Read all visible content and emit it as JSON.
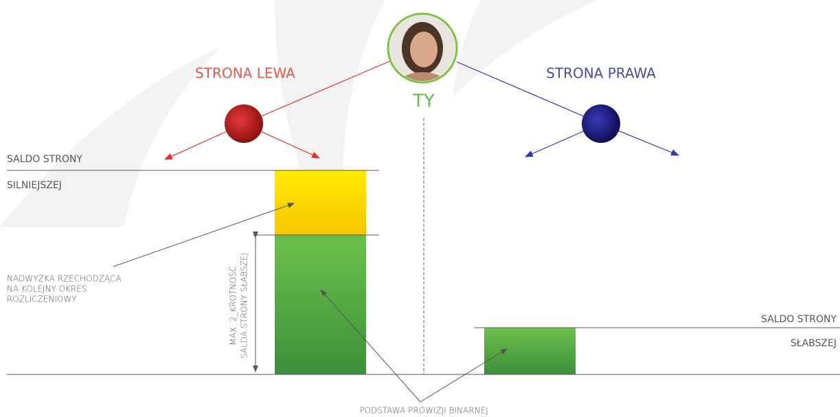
{
  "diagram": {
    "center_label": "TY",
    "left_label": "STRONA LEWA",
    "right_label": "STRONA PRAWA",
    "strong_balance": [
      "SALDO STRONY",
      "SILNIEJSZEJ"
    ],
    "weak_balance": [
      "SALDO STRONY",
      "SŁABSZEJ"
    ],
    "surplus_note": [
      "NADWYŻKA RZECHODZĄCA",
      "NA KOLEJNY OKRES",
      "ROZLICZENIOWY"
    ],
    "max_note": [
      "MAX. 2_KROTNOŚĆ",
      "SALDA STRONY SŁABSZEJ"
    ],
    "base_note": "PODSTAWA PROWIZJI BINARNEJ"
  }
}
